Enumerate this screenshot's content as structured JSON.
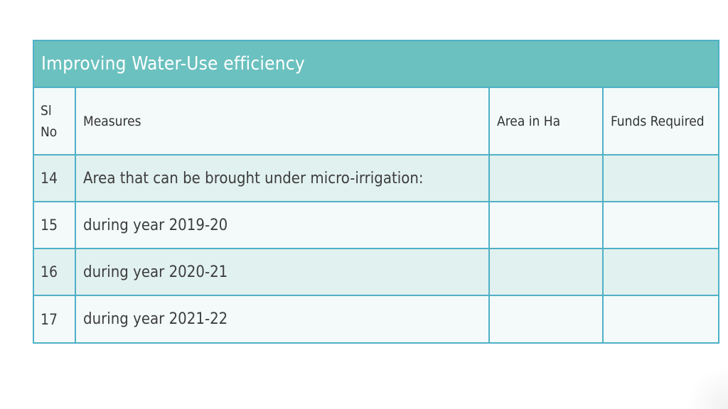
{
  "table": {
    "title": "Improving Water-Use efficiency",
    "headers": {
      "sl_no_line1": "Sl",
      "sl_no_line2": "No",
      "measures": "Measures",
      "area": "Area in Ha",
      "funds": "Funds Required"
    },
    "rows": [
      {
        "sl": "14",
        "measure": "Area that can be brought under micro-irrigation:",
        "area": "",
        "funds": ""
      },
      {
        "sl": "15",
        "measure": "during year 2019-20",
        "area": "",
        "funds": ""
      },
      {
        "sl": "16",
        "measure": "during year 2020-21",
        "area": "",
        "funds": ""
      },
      {
        "sl": "17",
        "measure": "during year 2021-22",
        "area": "",
        "funds": ""
      }
    ]
  },
  "colors": {
    "title_bar": "#6bc1bf",
    "border": "#4fb0c6",
    "row_shade": "#e1f1ef",
    "row_plain": "#f3faf9"
  }
}
